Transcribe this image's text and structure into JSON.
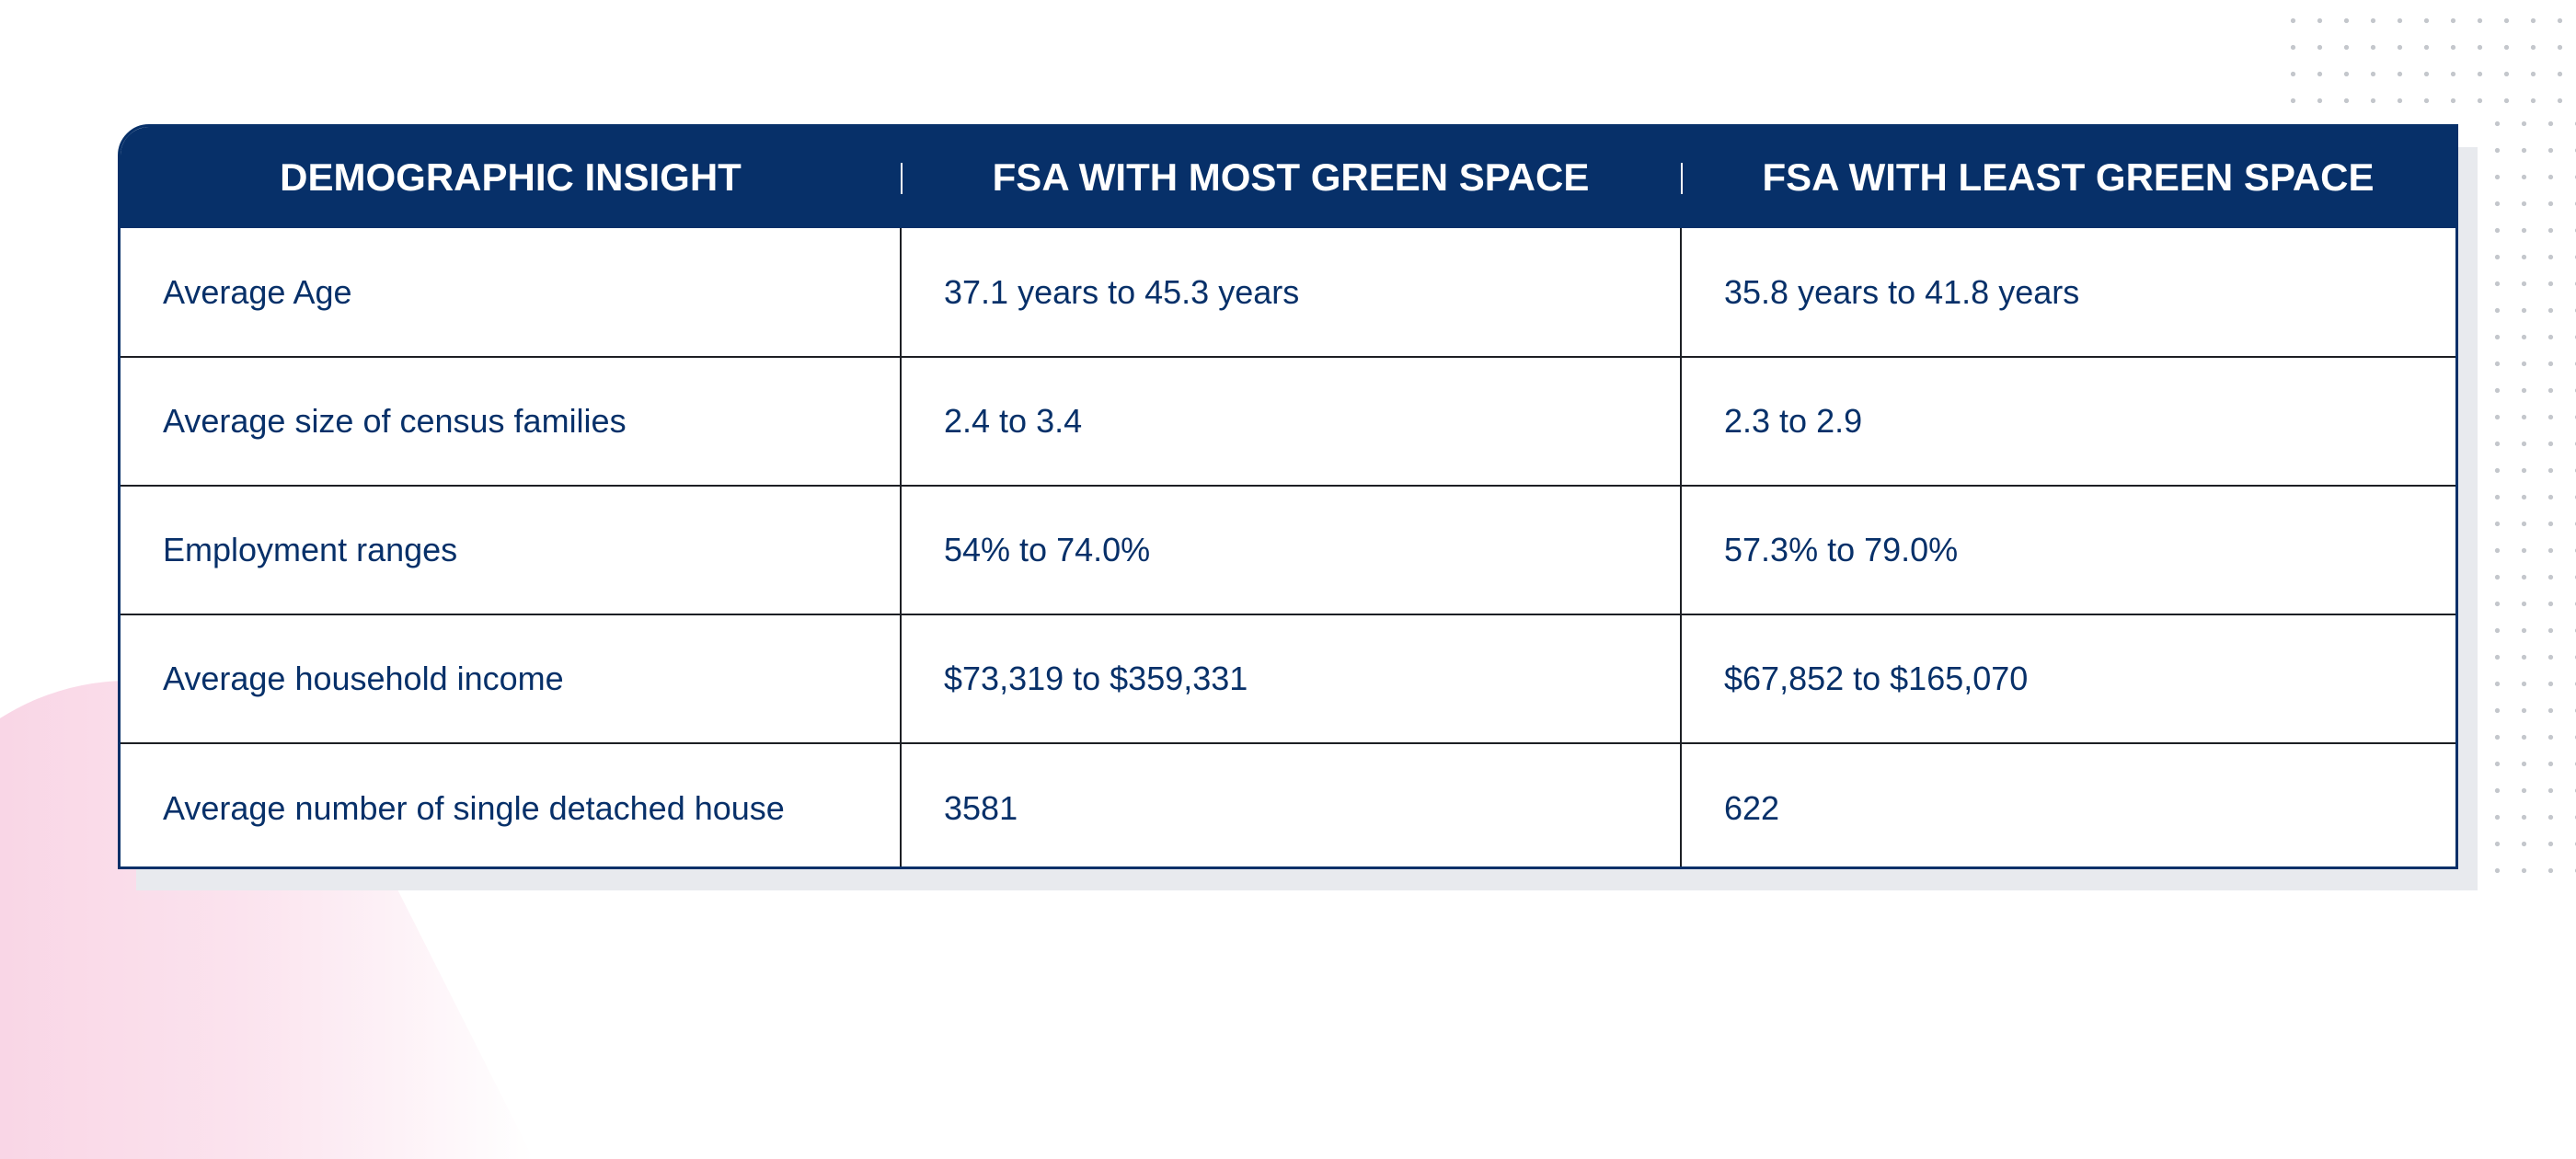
{
  "table": {
    "headers": [
      "DEMOGRAPHIC INSIGHT",
      "FSA WITH MOST GREEN SPACE",
      "FSA WITH LEAST GREEN SPACE"
    ],
    "rows": [
      [
        "Average Age",
        "37.1 years to 45.3 years",
        "35.8 years to 41.8 years"
      ],
      [
        "Average size of census families",
        "2.4 to 3.4",
        "2.3 to 2.9"
      ],
      [
        "Employment ranges",
        "54% to 74.0%",
        "57.3% to 79.0%"
      ],
      [
        "Average household income",
        "$73,319 to $359,331",
        "$67,852 to $165,070"
      ],
      [
        "Average number of single detached house",
        "3581",
        "622"
      ]
    ]
  },
  "colors": {
    "header_background": "#073069",
    "header_text": "#ffffff",
    "body_text": "#073069",
    "grid_lines": "#1d1f24",
    "shadow": "#e8eaee",
    "accent_pink": "#f8d0e2",
    "dot_grid": "#c4c7cc"
  }
}
